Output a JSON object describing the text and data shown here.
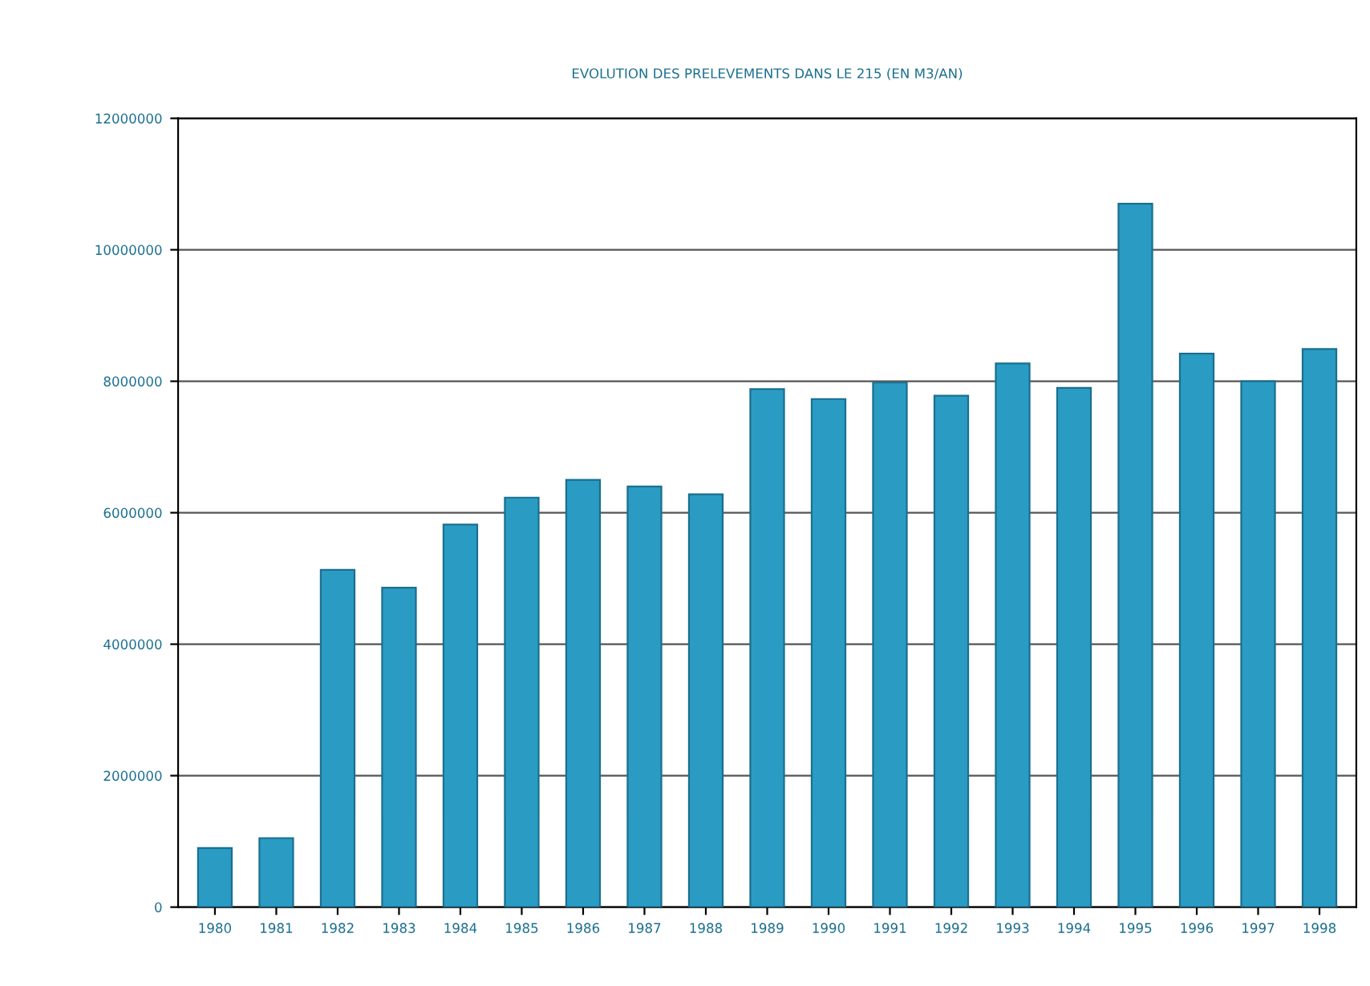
{
  "chart_data": {
    "type": "bar",
    "title": "EVOLUTION DES PRELEVEMENTS DANS LE 215 (EN M3/AN)",
    "categories": [
      "1980",
      "1981",
      "1982",
      "1983",
      "1984",
      "1985",
      "1986",
      "1987",
      "1988",
      "1989",
      "1990",
      "1991",
      "1992",
      "1993",
      "1994",
      "1995",
      "1996",
      "1997",
      "1998"
    ],
    "values": [
      900000,
      1050000,
      5130000,
      4860000,
      5820000,
      6230000,
      6500000,
      6400000,
      6280000,
      7880000,
      7730000,
      7980000,
      7780000,
      8270000,
      7900000,
      10700000,
      8420000,
      8000000,
      8490000
    ],
    "color": "#2a9cc4",
    "ylim": [
      0,
      12000000
    ],
    "yticks": [
      0,
      2000000,
      4000000,
      6000000,
      8000000,
      10000000,
      12000000
    ],
    "grid": "y"
  }
}
